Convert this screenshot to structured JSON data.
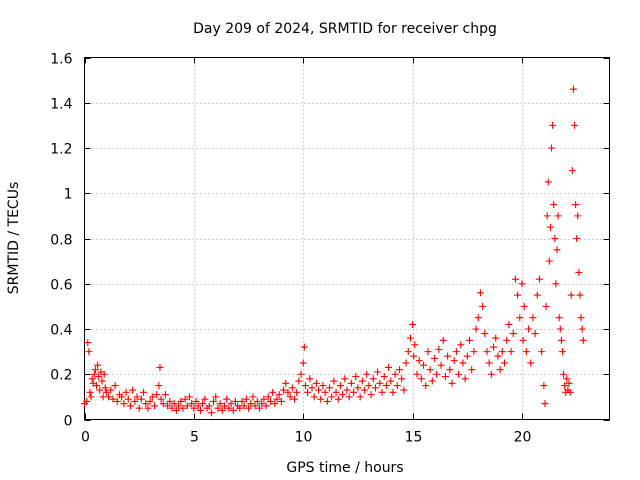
{
  "chart_data": {
    "type": "scatter",
    "title": "Day 209 of 2024, SRMTID for receiver chpg",
    "xlabel": "GPS time / hours",
    "ylabel": "SRMTID / TECUs",
    "xlim": [
      0,
      24
    ],
    "ylim": [
      0,
      1.6
    ],
    "x_ticks": [
      0,
      5,
      10,
      15,
      20
    ],
    "x_tick_labels": [
      "0",
      "5",
      "10",
      "15",
      "20"
    ],
    "y_ticks": [
      0,
      0.2,
      0.4,
      0.6,
      0.8,
      1.0,
      1.2,
      1.4,
      1.6
    ],
    "y_tick_labels": [
      "0",
      "0.2",
      "0.4",
      "0.6",
      "0.8",
      "1",
      "1.2",
      "1.4",
      "1.6"
    ],
    "grid": true,
    "marker": "+",
    "marker_color": "#ff0000",
    "series": [
      {
        "name": "SRMTID",
        "color": "#ff0000",
        "points": [
          [
            0.0,
            0.07
          ],
          [
            0.1,
            0.08
          ],
          [
            0.15,
            0.34
          ],
          [
            0.2,
            0.3
          ],
          [
            0.25,
            0.12
          ],
          [
            0.3,
            0.1
          ],
          [
            0.35,
            0.18
          ],
          [
            0.4,
            0.16
          ],
          [
            0.45,
            0.2
          ],
          [
            0.5,
            0.22
          ],
          [
            0.55,
            0.15
          ],
          [
            0.6,
            0.24
          ],
          [
            0.65,
            0.19
          ],
          [
            0.7,
            0.13
          ],
          [
            0.75,
            0.21
          ],
          [
            0.8,
            0.17
          ],
          [
            0.85,
            0.1
          ],
          [
            0.9,
            0.2
          ],
          [
            0.95,
            0.14
          ],
          [
            1.0,
            0.12
          ],
          [
            1.1,
            0.1
          ],
          [
            1.2,
            0.13
          ],
          [
            1.3,
            0.09
          ],
          [
            1.4,
            0.15
          ],
          [
            1.5,
            0.08
          ],
          [
            1.6,
            0.11
          ],
          [
            1.7,
            0.1
          ],
          [
            1.8,
            0.07
          ],
          [
            1.9,
            0.12
          ],
          [
            2.0,
            0.09
          ],
          [
            2.1,
            0.06
          ],
          [
            2.2,
            0.13
          ],
          [
            2.3,
            0.08
          ],
          [
            2.4,
            0.1
          ],
          [
            2.5,
            0.05
          ],
          [
            2.6,
            0.09
          ],
          [
            2.7,
            0.12
          ],
          [
            2.8,
            0.07
          ],
          [
            2.9,
            0.05
          ],
          [
            3.0,
            0.08
          ],
          [
            3.1,
            0.1
          ],
          [
            3.2,
            0.06
          ],
          [
            3.3,
            0.11
          ],
          [
            3.4,
            0.15
          ],
          [
            3.45,
            0.23
          ],
          [
            3.5,
            0.09
          ],
          [
            3.6,
            0.07
          ],
          [
            3.7,
            0.11
          ],
          [
            3.8,
            0.06
          ],
          [
            3.9,
            0.08
          ],
          [
            4.0,
            0.05
          ],
          [
            4.1,
            0.07
          ],
          [
            4.2,
            0.04
          ],
          [
            4.3,
            0.06
          ],
          [
            4.4,
            0.08
          ],
          [
            4.5,
            0.05
          ],
          [
            4.6,
            0.09
          ],
          [
            4.7,
            0.06
          ],
          [
            4.8,
            0.1
          ],
          [
            4.9,
            0.07
          ],
          [
            5.0,
            0.05
          ],
          [
            5.1,
            0.08
          ],
          [
            5.2,
            0.06
          ],
          [
            5.3,
            0.04
          ],
          [
            5.4,
            0.07
          ],
          [
            5.5,
            0.09
          ],
          [
            5.6,
            0.05
          ],
          [
            5.7,
            0.06
          ],
          [
            5.8,
            0.03
          ],
          [
            5.9,
            0.08
          ],
          [
            6.0,
            0.1
          ],
          [
            6.1,
            0.05
          ],
          [
            6.2,
            0.07
          ],
          [
            6.3,
            0.04
          ],
          [
            6.4,
            0.06
          ],
          [
            6.5,
            0.09
          ],
          [
            6.6,
            0.05
          ],
          [
            6.7,
            0.07
          ],
          [
            6.8,
            0.04
          ],
          [
            6.9,
            0.08
          ],
          [
            7.0,
            0.06
          ],
          [
            7.1,
            0.05
          ],
          [
            7.2,
            0.08
          ],
          [
            7.3,
            0.06
          ],
          [
            7.4,
            0.09
          ],
          [
            7.5,
            0.05
          ],
          [
            7.6,
            0.07
          ],
          [
            7.7,
            0.1
          ],
          [
            7.8,
            0.06
          ],
          [
            7.9,
            0.08
          ],
          [
            8.0,
            0.05
          ],
          [
            8.1,
            0.07
          ],
          [
            8.2,
            0.09
          ],
          [
            8.3,
            0.06
          ],
          [
            8.4,
            0.1
          ],
          [
            8.5,
            0.08
          ],
          [
            8.6,
            0.12
          ],
          [
            8.7,
            0.07
          ],
          [
            8.8,
            0.09
          ],
          [
            8.9,
            0.11
          ],
          [
            9.0,
            0.08
          ],
          [
            9.1,
            0.13
          ],
          [
            9.2,
            0.16
          ],
          [
            9.3,
            0.12
          ],
          [
            9.4,
            0.1
          ],
          [
            9.5,
            0.14
          ],
          [
            9.6,
            0.09
          ],
          [
            9.7,
            0.12
          ],
          [
            9.8,
            0.17
          ],
          [
            9.9,
            0.2
          ],
          [
            10.0,
            0.25
          ],
          [
            10.05,
            0.32
          ],
          [
            10.1,
            0.15
          ],
          [
            10.2,
            0.12
          ],
          [
            10.3,
            0.18
          ],
          [
            10.4,
            0.14
          ],
          [
            10.5,
            0.1
          ],
          [
            10.6,
            0.16
          ],
          [
            10.7,
            0.13
          ],
          [
            10.8,
            0.09
          ],
          [
            10.9,
            0.15
          ],
          [
            11.0,
            0.12
          ],
          [
            11.1,
            0.08
          ],
          [
            11.2,
            0.14
          ],
          [
            11.3,
            0.1
          ],
          [
            11.4,
            0.17
          ],
          [
            11.5,
            0.12
          ],
          [
            11.6,
            0.09
          ],
          [
            11.7,
            0.15
          ],
          [
            11.8,
            0.11
          ],
          [
            11.9,
            0.18
          ],
          [
            12.0,
            0.13
          ],
          [
            12.1,
            0.1
          ],
          [
            12.2,
            0.16
          ],
          [
            12.3,
            0.12
          ],
          [
            12.4,
            0.19
          ],
          [
            12.5,
            0.14
          ],
          [
            12.6,
            0.1
          ],
          [
            12.7,
            0.17
          ],
          [
            12.8,
            0.13
          ],
          [
            12.9,
            0.2
          ],
          [
            13.0,
            0.15
          ],
          [
            13.1,
            0.11
          ],
          [
            13.2,
            0.18
          ],
          [
            13.3,
            0.14
          ],
          [
            13.4,
            0.21
          ],
          [
            13.5,
            0.16
          ],
          [
            13.6,
            0.12
          ],
          [
            13.7,
            0.19
          ],
          [
            13.8,
            0.15
          ],
          [
            13.9,
            0.23
          ],
          [
            14.0,
            0.17
          ],
          [
            14.1,
            0.12
          ],
          [
            14.2,
            0.2
          ],
          [
            14.3,
            0.15
          ],
          [
            14.4,
            0.22
          ],
          [
            14.5,
            0.18
          ],
          [
            14.6,
            0.13
          ],
          [
            14.7,
            0.25
          ],
          [
            14.8,
            0.3
          ],
          [
            14.9,
            0.36
          ],
          [
            15.0,
            0.42
          ],
          [
            15.05,
            0.28
          ],
          [
            15.1,
            0.33
          ],
          [
            15.2,
            0.2
          ],
          [
            15.3,
            0.26
          ],
          [
            15.4,
            0.18
          ],
          [
            15.5,
            0.24
          ],
          [
            15.6,
            0.15
          ],
          [
            15.7,
            0.3
          ],
          [
            15.8,
            0.22
          ],
          [
            15.9,
            0.17
          ],
          [
            16.0,
            0.27
          ],
          [
            16.1,
            0.2
          ],
          [
            16.2,
            0.31
          ],
          [
            16.3,
            0.24
          ],
          [
            16.4,
            0.35
          ],
          [
            16.5,
            0.19
          ],
          [
            16.6,
            0.28
          ],
          [
            16.7,
            0.22
          ],
          [
            16.8,
            0.16
          ],
          [
            16.9,
            0.26
          ],
          [
            17.0,
            0.3
          ],
          [
            17.1,
            0.2
          ],
          [
            17.2,
            0.33
          ],
          [
            17.3,
            0.25
          ],
          [
            17.4,
            0.18
          ],
          [
            17.5,
            0.28
          ],
          [
            17.6,
            0.35
          ],
          [
            17.7,
            0.22
          ],
          [
            17.8,
            0.3
          ],
          [
            17.9,
            0.4
          ],
          [
            18.0,
            0.45
          ],
          [
            18.1,
            0.56
          ],
          [
            18.2,
            0.5
          ],
          [
            18.3,
            0.38
          ],
          [
            18.4,
            0.3
          ],
          [
            18.5,
            0.25
          ],
          [
            18.6,
            0.2
          ],
          [
            18.7,
            0.32
          ],
          [
            18.8,
            0.36
          ],
          [
            18.9,
            0.28
          ],
          [
            19.0,
            0.22
          ],
          [
            19.1,
            0.3
          ],
          [
            19.2,
            0.25
          ],
          [
            19.3,
            0.35
          ],
          [
            19.4,
            0.42
          ],
          [
            19.5,
            0.3
          ],
          [
            19.6,
            0.38
          ],
          [
            19.7,
            0.62
          ],
          [
            19.8,
            0.55
          ],
          [
            19.9,
            0.45
          ],
          [
            20.0,
            0.6
          ],
          [
            20.05,
            0.35
          ],
          [
            20.1,
            0.5
          ],
          [
            20.2,
            0.3
          ],
          [
            20.3,
            0.4
          ],
          [
            20.4,
            0.25
          ],
          [
            20.5,
            0.45
          ],
          [
            20.6,
            0.38
          ],
          [
            20.7,
            0.55
          ],
          [
            20.8,
            0.62
          ],
          [
            20.9,
            0.3
          ],
          [
            21.0,
            0.15
          ],
          [
            21.05,
            0.07
          ],
          [
            21.1,
            0.5
          ],
          [
            21.15,
            0.9
          ],
          [
            21.2,
            1.05
          ],
          [
            21.25,
            0.7
          ],
          [
            21.3,
            0.85
          ],
          [
            21.35,
            1.2
          ],
          [
            21.4,
            1.3
          ],
          [
            21.45,
            0.95
          ],
          [
            21.5,
            0.8
          ],
          [
            21.55,
            0.6
          ],
          [
            21.6,
            0.75
          ],
          [
            21.65,
            0.9
          ],
          [
            21.7,
            0.45
          ],
          [
            21.75,
            0.4
          ],
          [
            21.8,
            0.35
          ],
          [
            21.85,
            0.3
          ],
          [
            21.9,
            0.2
          ],
          [
            21.95,
            0.15
          ],
          [
            22.0,
            0.12
          ],
          [
            22.05,
            0.18
          ],
          [
            22.1,
            0.13
          ],
          [
            22.15,
            0.16
          ],
          [
            22.2,
            0.12
          ],
          [
            22.25,
            0.55
          ],
          [
            22.3,
            1.1
          ],
          [
            22.35,
            1.46
          ],
          [
            22.4,
            1.3
          ],
          [
            22.45,
            0.95
          ],
          [
            22.5,
            0.8
          ],
          [
            22.55,
            0.9
          ],
          [
            22.6,
            0.65
          ],
          [
            22.65,
            0.55
          ],
          [
            22.7,
            0.45
          ],
          [
            22.75,
            0.4
          ],
          [
            22.8,
            0.35
          ]
        ]
      }
    ]
  }
}
